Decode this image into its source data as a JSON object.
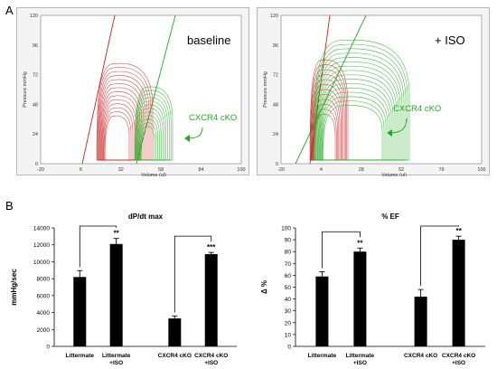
{
  "panel_a_label": "A",
  "panel_b_label": "B",
  "pv_loops": [
    {
      "condition_label": "baseline",
      "annotation": "CXCR4 cKO",
      "ylabel": "Pressure mmHg",
      "xlabel": "Volume (ul)",
      "y_ticks": [
        "0",
        "24",
        "48",
        "72",
        "96",
        "120"
      ],
      "x_ticks": [
        "-20",
        "6",
        "32",
        "58",
        "84",
        "100"
      ]
    },
    {
      "condition_label": "+ ISO",
      "annotation": "CXCR4 cKO",
      "ylabel": "Pressure mmHg",
      "xlabel": "Volume (ul)",
      "y_ticks": [
        "0",
        "24",
        "48",
        "72",
        "96",
        "120"
      ],
      "x_ticks": [
        "-20",
        "4",
        "28",
        "52",
        "76",
        "100"
      ]
    }
  ],
  "colors": {
    "littermate": "#cc2222",
    "cko": "#22aa22",
    "bar": "#000000"
  },
  "chart_data": [
    {
      "type": "bar",
      "title": "dP/dt max",
      "ylabel": "mmHg/sec",
      "categories": [
        "Littermate",
        "Littermate +ISO",
        "CXCR4 cKO",
        "CXCR4 cKO +ISO"
      ],
      "values": [
        8200,
        12100,
        3300,
        10900
      ],
      "errors": [
        750,
        650,
        300,
        200
      ],
      "significance": [
        "",
        "**",
        "",
        "***"
      ],
      "ylim": [
        0,
        14000
      ],
      "y_ticks": [
        "0",
        "2000",
        "4000",
        "6000",
        "8000",
        "10000",
        "12000",
        "14000"
      ],
      "brackets": [
        [
          0,
          1
        ],
        [
          2,
          3
        ]
      ]
    },
    {
      "type": "bar",
      "title": "% EF",
      "ylabel": "Δ %",
      "categories": [
        "Littermate",
        "Littermate +ISO",
        "CXCR4 cKO",
        "CXCR4 cKO +ISO"
      ],
      "values": [
        59,
        80,
        42,
        90
      ],
      "errors": [
        4,
        3,
        6,
        3
      ],
      "significance": [
        "",
        "**",
        "",
        "**"
      ],
      "ylim": [
        0,
        100
      ],
      "y_ticks": [
        "0",
        "10",
        "20",
        "30",
        "40",
        "50",
        "60",
        "70",
        "80",
        "90",
        "100"
      ],
      "brackets": [
        [
          0,
          1
        ],
        [
          2,
          3
        ]
      ]
    }
  ]
}
